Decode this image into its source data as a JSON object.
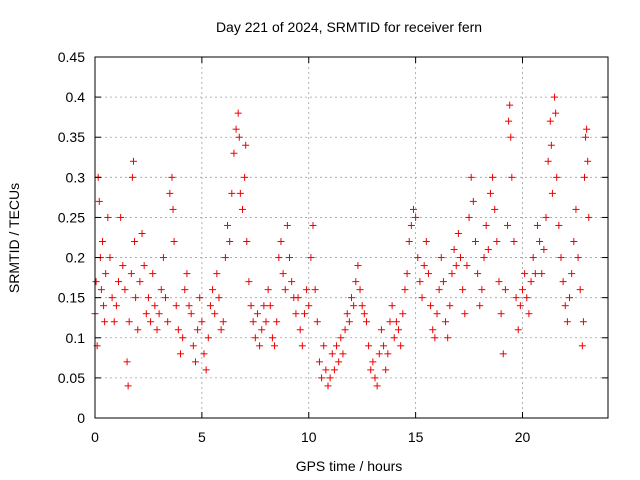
{
  "chart_data": {
    "type": "scatter",
    "title": "Day 221 of 2024, SRMTID for receiver fern",
    "xlabel": "GPS time / hours",
    "ylabel": "SRMTID / TECUs",
    "xlim": [
      0,
      24
    ],
    "ylim": [
      0,
      0.45
    ],
    "xticks": [
      0,
      5,
      10,
      15,
      20
    ],
    "xtick_labels": [
      "0",
      "5",
      "10",
      "15",
      "20"
    ],
    "yticks": [
      0,
      0.05,
      0.1,
      0.15,
      0.2,
      0.25,
      0.3,
      0.35,
      0.4,
      0.45
    ],
    "ytick_labels": [
      "0",
      "0.05",
      "0.1",
      "0.15",
      "0.2",
      "0.25",
      "0.3",
      "0.35",
      "0.4",
      "0.45"
    ],
    "grid": true,
    "marker": "plus",
    "color": "#ee0000",
    "series": [
      {
        "name": "SRMTID",
        "points": [
          [
            0.0,
            0.13
          ],
          [
            0.05,
            0.17
          ],
          [
            0.1,
            0.09
          ],
          [
            0.15,
            0.3
          ],
          [
            0.2,
            0.27
          ],
          [
            0.25,
            0.2
          ],
          [
            0.3,
            0.16
          ],
          [
            0.35,
            0.22
          ],
          [
            0.4,
            0.14
          ],
          [
            0.45,
            0.12
          ],
          [
            0.5,
            0.18
          ],
          [
            0.6,
            0.25
          ],
          [
            0.7,
            0.2
          ],
          [
            0.8,
            0.15
          ],
          [
            0.9,
            0.12
          ],
          [
            1.0,
            0.14
          ],
          [
            1.1,
            0.17
          ],
          [
            1.2,
            0.25
          ],
          [
            1.3,
            0.19
          ],
          [
            1.4,
            0.16
          ],
          [
            1.5,
            0.07
          ],
          [
            1.55,
            0.04
          ],
          [
            1.6,
            0.12
          ],
          [
            1.7,
            0.18
          ],
          [
            1.75,
            0.3
          ],
          [
            1.8,
            0.32
          ],
          [
            1.85,
            0.22
          ],
          [
            1.9,
            0.15
          ],
          [
            2.0,
            0.11
          ],
          [
            2.1,
            0.17
          ],
          [
            2.2,
            0.23
          ],
          [
            2.3,
            0.19
          ],
          [
            2.4,
            0.13
          ],
          [
            2.5,
            0.15
          ],
          [
            2.6,
            0.12
          ],
          [
            2.7,
            0.18
          ],
          [
            2.8,
            0.14
          ],
          [
            2.9,
            0.11
          ],
          [
            3.0,
            0.13
          ],
          [
            3.1,
            0.16
          ],
          [
            3.2,
            0.2
          ],
          [
            3.3,
            0.15
          ],
          [
            3.4,
            0.12
          ],
          [
            3.5,
            0.28
          ],
          [
            3.6,
            0.3
          ],
          [
            3.65,
            0.26
          ],
          [
            3.7,
            0.22
          ],
          [
            3.8,
            0.14
          ],
          [
            3.9,
            0.11
          ],
          [
            4.0,
            0.08
          ],
          [
            4.1,
            0.1
          ],
          [
            4.2,
            0.16
          ],
          [
            4.3,
            0.18
          ],
          [
            4.4,
            0.14
          ],
          [
            4.5,
            0.13
          ],
          [
            4.6,
            0.09
          ],
          [
            4.7,
            0.07
          ],
          [
            4.8,
            0.11
          ],
          [
            4.9,
            0.15
          ],
          [
            5.0,
            0.12
          ],
          [
            5.1,
            0.08
          ],
          [
            5.2,
            0.06
          ],
          [
            5.3,
            0.1
          ],
          [
            5.4,
            0.14
          ],
          [
            5.5,
            0.16
          ],
          [
            5.6,
            0.13
          ],
          [
            5.7,
            0.18
          ],
          [
            5.8,
            0.15
          ],
          [
            5.9,
            0.11
          ],
          [
            6.0,
            0.12
          ],
          [
            6.1,
            0.2
          ],
          [
            6.2,
            0.24
          ],
          [
            6.3,
            0.22
          ],
          [
            6.4,
            0.28
          ],
          [
            6.5,
            0.33
          ],
          [
            6.6,
            0.36
          ],
          [
            6.7,
            0.38
          ],
          [
            6.75,
            0.35
          ],
          [
            6.8,
            0.28
          ],
          [
            6.9,
            0.26
          ],
          [
            7.0,
            0.3
          ],
          [
            7.05,
            0.34
          ],
          [
            7.1,
            0.22
          ],
          [
            7.2,
            0.17
          ],
          [
            7.3,
            0.14
          ],
          [
            7.4,
            0.12
          ],
          [
            7.5,
            0.1
          ],
          [
            7.6,
            0.13
          ],
          [
            7.7,
            0.09
          ],
          [
            7.8,
            0.11
          ],
          [
            7.9,
            0.14
          ],
          [
            8.0,
            0.12
          ],
          [
            8.1,
            0.16
          ],
          [
            8.2,
            0.14
          ],
          [
            8.3,
            0.1
          ],
          [
            8.4,
            0.09
          ],
          [
            8.5,
            0.12
          ],
          [
            8.6,
            0.2
          ],
          [
            8.7,
            0.22
          ],
          [
            8.8,
            0.18
          ],
          [
            8.9,
            0.16
          ],
          [
            9.0,
            0.24
          ],
          [
            9.1,
            0.2
          ],
          [
            9.2,
            0.17
          ],
          [
            9.3,
            0.15
          ],
          [
            9.4,
            0.13
          ],
          [
            9.5,
            0.15
          ],
          [
            9.6,
            0.11
          ],
          [
            9.7,
            0.09
          ],
          [
            9.8,
            0.13
          ],
          [
            9.9,
            0.16
          ],
          [
            10.0,
            0.14
          ],
          [
            10.1,
            0.2
          ],
          [
            10.2,
            0.24
          ],
          [
            10.3,
            0.16
          ],
          [
            10.4,
            0.12
          ],
          [
            10.5,
            0.07
          ],
          [
            10.6,
            0.05
          ],
          [
            10.7,
            0.09
          ],
          [
            10.8,
            0.06
          ],
          [
            10.9,
            0.04
          ],
          [
            11.0,
            0.05
          ],
          [
            11.1,
            0.08
          ],
          [
            11.2,
            0.06
          ],
          [
            11.3,
            0.09
          ],
          [
            11.4,
            0.07
          ],
          [
            11.5,
            0.1
          ],
          [
            11.6,
            0.08
          ],
          [
            11.7,
            0.11
          ],
          [
            11.8,
            0.13
          ],
          [
            11.9,
            0.12
          ],
          [
            12.0,
            0.15
          ],
          [
            12.1,
            0.14
          ],
          [
            12.2,
            0.17
          ],
          [
            12.3,
            0.19
          ],
          [
            12.4,
            0.16
          ],
          [
            12.5,
            0.14
          ],
          [
            12.6,
            0.13
          ],
          [
            12.7,
            0.12
          ],
          [
            12.8,
            0.09
          ],
          [
            12.9,
            0.06
          ],
          [
            13.0,
            0.07
          ],
          [
            13.1,
            0.05
          ],
          [
            13.2,
            0.04
          ],
          [
            13.3,
            0.08
          ],
          [
            13.4,
            0.11
          ],
          [
            13.5,
            0.09
          ],
          [
            13.6,
            0.06
          ],
          [
            13.7,
            0.08
          ],
          [
            13.8,
            0.12
          ],
          [
            13.9,
            0.14
          ],
          [
            14.0,
            0.1
          ],
          [
            14.1,
            0.12
          ],
          [
            14.2,
            0.11
          ],
          [
            14.3,
            0.09
          ],
          [
            14.4,
            0.13
          ],
          [
            14.5,
            0.16
          ],
          [
            14.6,
            0.18
          ],
          [
            14.7,
            0.22
          ],
          [
            14.8,
            0.24
          ],
          [
            14.9,
            0.26
          ],
          [
            15.0,
            0.25
          ],
          [
            15.1,
            0.2
          ],
          [
            15.2,
            0.17
          ],
          [
            15.3,
            0.15
          ],
          [
            15.4,
            0.19
          ],
          [
            15.5,
            0.22
          ],
          [
            15.6,
            0.18
          ],
          [
            15.7,
            0.14
          ],
          [
            15.8,
            0.11
          ],
          [
            15.9,
            0.1
          ],
          [
            16.0,
            0.13
          ],
          [
            16.1,
            0.16
          ],
          [
            16.2,
            0.2
          ],
          [
            16.3,
            0.17
          ],
          [
            16.4,
            0.12
          ],
          [
            16.5,
            0.1
          ],
          [
            16.6,
            0.14
          ],
          [
            16.7,
            0.18
          ],
          [
            16.8,
            0.21
          ],
          [
            16.9,
            0.19
          ],
          [
            17.0,
            0.23
          ],
          [
            17.1,
            0.2
          ],
          [
            17.2,
            0.16
          ],
          [
            17.3,
            0.13
          ],
          [
            17.4,
            0.19
          ],
          [
            17.5,
            0.25
          ],
          [
            17.6,
            0.3
          ],
          [
            17.7,
            0.27
          ],
          [
            17.8,
            0.22
          ],
          [
            17.9,
            0.18
          ],
          [
            18.0,
            0.14
          ],
          [
            18.1,
            0.16
          ],
          [
            18.2,
            0.2
          ],
          [
            18.3,
            0.24
          ],
          [
            18.4,
            0.21
          ],
          [
            18.5,
            0.28
          ],
          [
            18.6,
            0.3
          ],
          [
            18.7,
            0.26
          ],
          [
            18.8,
            0.22
          ],
          [
            18.9,
            0.17
          ],
          [
            19.0,
            0.13
          ],
          [
            19.1,
            0.08
          ],
          [
            19.2,
            0.16
          ],
          [
            19.3,
            0.24
          ],
          [
            19.35,
            0.37
          ],
          [
            19.4,
            0.39
          ],
          [
            19.45,
            0.35
          ],
          [
            19.5,
            0.3
          ],
          [
            19.6,
            0.22
          ],
          [
            19.7,
            0.15
          ],
          [
            19.8,
            0.11
          ],
          [
            19.9,
            0.14
          ],
          [
            20.0,
            0.16
          ],
          [
            20.1,
            0.18
          ],
          [
            20.2,
            0.15
          ],
          [
            20.3,
            0.13
          ],
          [
            20.4,
            0.17
          ],
          [
            20.5,
            0.2
          ],
          [
            20.6,
            0.18
          ],
          [
            20.7,
            0.24
          ],
          [
            20.8,
            0.22
          ],
          [
            20.9,
            0.18
          ],
          [
            21.0,
            0.21
          ],
          [
            21.1,
            0.25
          ],
          [
            21.2,
            0.32
          ],
          [
            21.3,
            0.37
          ],
          [
            21.35,
            0.34
          ],
          [
            21.4,
            0.28
          ],
          [
            21.5,
            0.4
          ],
          [
            21.55,
            0.38
          ],
          [
            21.6,
            0.3
          ],
          [
            21.7,
            0.24
          ],
          [
            21.8,
            0.2
          ],
          [
            21.9,
            0.17
          ],
          [
            22.0,
            0.14
          ],
          [
            22.1,
            0.12
          ],
          [
            22.2,
            0.15
          ],
          [
            22.3,
            0.18
          ],
          [
            22.4,
            0.22
          ],
          [
            22.5,
            0.26
          ],
          [
            22.6,
            0.2
          ],
          [
            22.7,
            0.16
          ],
          [
            22.8,
            0.09
          ],
          [
            22.85,
            0.12
          ],
          [
            22.9,
            0.3
          ],
          [
            22.95,
            0.35
          ],
          [
            23.0,
            0.36
          ],
          [
            23.05,
            0.32
          ],
          [
            23.1,
            0.25
          ]
        ]
      }
    ]
  }
}
